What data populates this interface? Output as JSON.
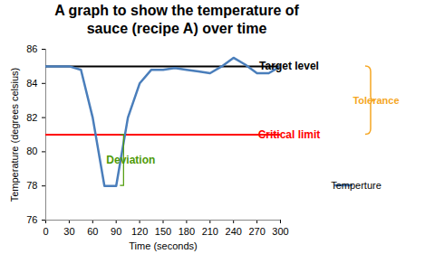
{
  "chart_data": {
    "type": "line",
    "title": "A graph to show the temperature of sauce (recipe A) over time",
    "x_label": "Time (seconds)",
    "y_label": "Temperature (degrees celsius)",
    "x": [
      0,
      15,
      30,
      45,
      60,
      75,
      90,
      105,
      120,
      135,
      150,
      165,
      180,
      195,
      210,
      225,
      240,
      255,
      270,
      285,
      300
    ],
    "series": [
      {
        "name": "Temperture",
        "color": "#4a7ebb",
        "values": [
          85,
          85,
          85,
          84.8,
          82,
          78,
          78,
          82,
          84,
          84.8,
          84.8,
          84.9,
          84.8,
          84.7,
          84.6,
          85,
          85.5,
          85.1,
          84.6,
          84.6,
          85
        ]
      }
    ],
    "xlim": [
      0,
      300
    ],
    "ylim": [
      76,
      86
    ],
    "xticks": [
      0,
      30,
      60,
      90,
      120,
      150,
      180,
      210,
      240,
      270,
      300
    ],
    "yticks": [
      76,
      78,
      80,
      82,
      84,
      86
    ],
    "legend": "right",
    "annotations": [
      {
        "type": "line",
        "label": "Target level",
        "value": 85,
        "color": "#000000"
      },
      {
        "type": "line",
        "label": "Critical limit",
        "value": 81,
        "color": "#ff0000"
      },
      {
        "type": "brace",
        "label": "Tolerance",
        "from": 81,
        "to": 85,
        "color": "#f5a623"
      },
      {
        "type": "bracket",
        "label": "Deviation",
        "x": 100,
        "from": 78,
        "to": 81,
        "color": "#4e9a06"
      }
    ]
  }
}
